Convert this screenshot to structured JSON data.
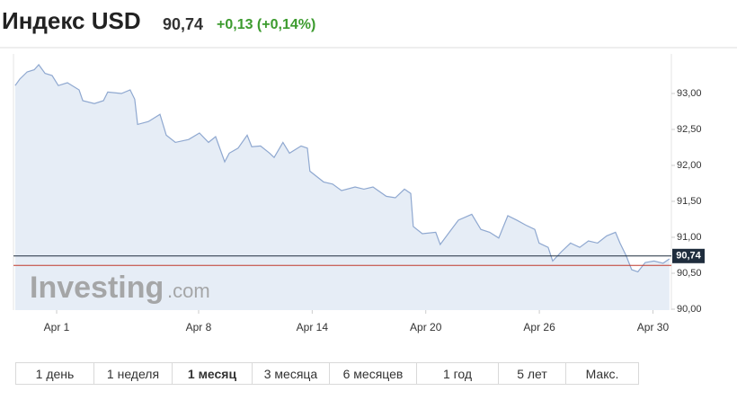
{
  "header": {
    "title": "Индекс USD",
    "price": "90,74",
    "change": "+0,13 (+0,14%)"
  },
  "chart_data": {
    "type": "line",
    "color": "#8fa8d0",
    "fill": "#e6edf6",
    "watermark": {
      "brand": "Investing",
      "suffix": ".com"
    },
    "x": [
      -1.46,
      -1.3,
      -1.04,
      -0.79,
      -0.63,
      -0.41,
      -0.16,
      0.06,
      0.38,
      0.79,
      0.92,
      1.33,
      1.65,
      1.8,
      2.28,
      2.59,
      2.75,
      2.85,
      3.23,
      3.64,
      3.86,
      4.18,
      4.65,
      5.03,
      5.35,
      5.6,
      5.92,
      6.08,
      6.39,
      6.71,
      6.87,
      7.18,
      7.5,
      7.66,
      7.97,
      8.2,
      8.61,
      8.83,
      8.92,
      9.4,
      9.72,
      10.03,
      10.51,
      10.82,
      11.14,
      11.61,
      11.93,
      12.25,
      12.47,
      12.56,
      12.88,
      13.35,
      13.51,
      13.83,
      14.15,
      14.62,
      14.94,
      15.25,
      15.57,
      15.89,
      16.2,
      16.52,
      16.84,
      16.99,
      17.31,
      17.47,
      17.78,
      18.1,
      18.42,
      18.73,
      19.05,
      19.37,
      19.68,
      19.84,
      20.06,
      20.25,
      20.47,
      20.73,
      21.04,
      21.36,
      21.58
    ],
    "series": [
      {
        "name": "USD",
        "color": "#8fa8d0",
        "values": [
          93.11,
          93.2,
          93.3,
          93.33,
          93.4,
          93.28,
          93.25,
          93.11,
          93.15,
          93.05,
          92.9,
          92.86,
          92.9,
          93.02,
          93.0,
          93.05,
          92.92,
          92.57,
          92.61,
          92.71,
          92.42,
          92.32,
          92.36,
          92.45,
          92.32,
          92.4,
          92.05,
          92.17,
          92.24,
          92.42,
          92.26,
          92.27,
          92.17,
          92.11,
          92.32,
          92.17,
          92.27,
          92.24,
          91.92,
          91.77,
          91.74,
          91.65,
          91.7,
          91.67,
          91.7,
          91.57,
          91.55,
          91.67,
          91.61,
          91.15,
          91.05,
          91.07,
          90.9,
          91.07,
          91.24,
          91.32,
          91.11,
          91.07,
          90.99,
          91.3,
          91.24,
          91.17,
          91.11,
          90.92,
          90.86,
          90.67,
          90.8,
          90.92,
          90.86,
          90.95,
          90.92,
          91.02,
          91.07,
          90.92,
          90.74,
          90.55,
          90.52,
          90.65,
          90.67,
          90.64,
          90.7
        ]
      }
    ],
    "xlim": [
      -1.52,
      21.65
    ],
    "xticks": [
      {
        "value": 0,
        "label": "Apr 1"
      },
      {
        "value": 5,
        "label": "Apr 8"
      },
      {
        "value": 9,
        "label": "Apr 14"
      },
      {
        "value": 13,
        "label": "Apr 20"
      },
      {
        "value": 17,
        "label": "Apr 26"
      },
      {
        "value": 21,
        "label": "Apr 30"
      }
    ],
    "ylim": [
      90.0,
      93.55
    ],
    "yticks": [
      {
        "value": 90,
        "label": "90,00"
      },
      {
        "value": 90.5,
        "label": "90,50"
      },
      {
        "value": 91,
        "label": "91,00"
      },
      {
        "value": 91.5,
        "label": "91,50"
      },
      {
        "value": 92,
        "label": "92,00"
      },
      {
        "value": 92.5,
        "label": "92,50"
      },
      {
        "value": 93,
        "label": "93,00"
      }
    ],
    "last": {
      "value": 90.74,
      "label": "90,74",
      "color": "#1f2d3d"
    },
    "prev_close": {
      "value": 90.61,
      "color": "#c0392b"
    }
  },
  "ranges": {
    "buttons": [
      "1 день",
      "1 неделя",
      "1 месяц",
      "3 месяца",
      "6 месяцев",
      "1 год",
      "5 лет",
      "Макс."
    ],
    "active": 2
  }
}
